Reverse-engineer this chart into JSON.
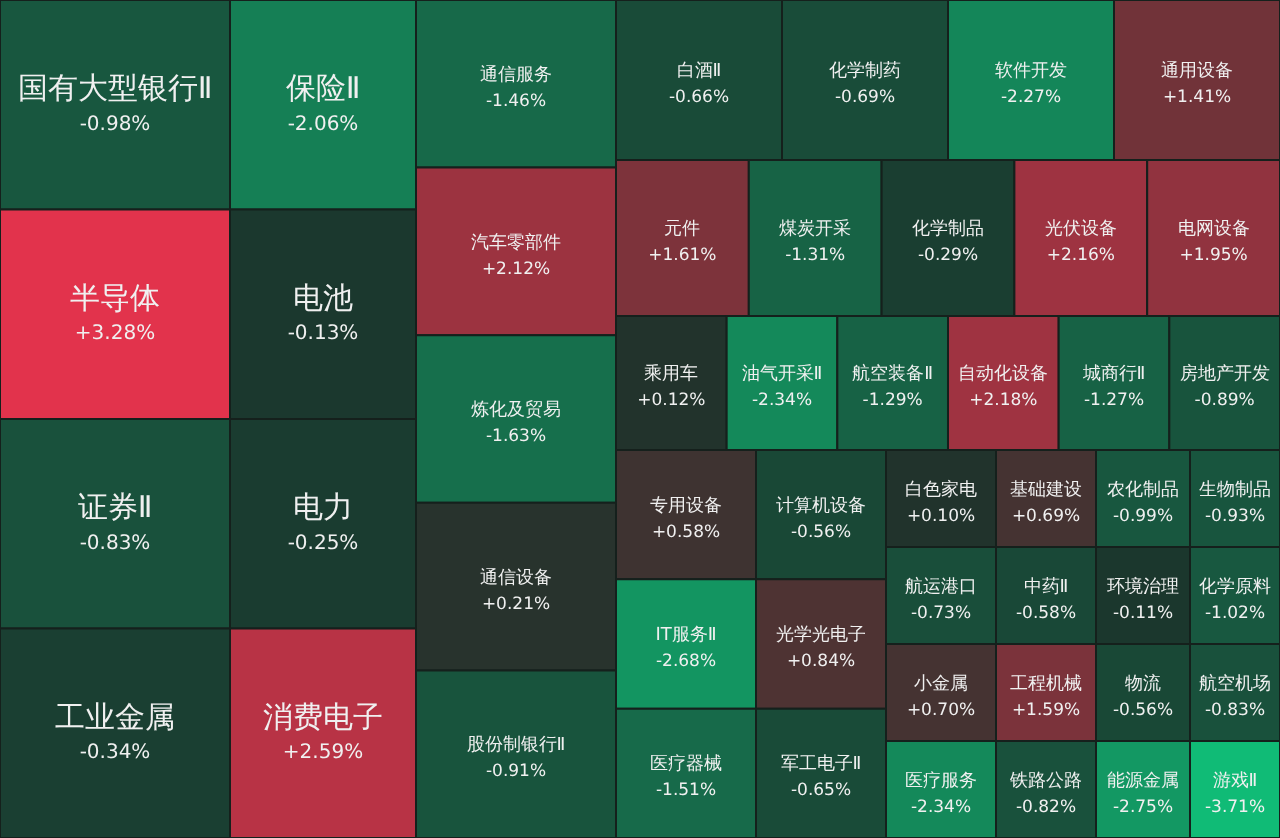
{
  "chart_data": {
    "type": "other",
    "categories": [
      "国有大型银行Ⅱ",
      "半导体",
      "证券Ⅱ",
      "工业金属",
      "保险Ⅱ",
      "电池",
      "电力",
      "消费电子",
      "通信服务",
      "汽车零部件",
      "炼化及贸易",
      "通信设备",
      "股份制银行Ⅱ",
      "白酒Ⅱ",
      "化学制药",
      "软件开发",
      "通用设备",
      "元件",
      "煤炭开采",
      "化学制品",
      "光伏设备",
      "电网设备",
      "乘用车",
      "油气开采Ⅱ",
      "航空装备Ⅱ",
      "自动化设备",
      "城商行Ⅱ",
      "房地产开发",
      "专用设备",
      "IT服务Ⅱ",
      "医疗器械",
      "计算机设备",
      "光学光电子",
      "军工电子Ⅱ",
      "白色家电",
      "航运港口",
      "小金属",
      "医疗服务",
      "基础建设",
      "中药Ⅱ",
      "工程机械",
      "铁路公路",
      "农化制品",
      "环境治理",
      "物流",
      "能源金属",
      "生物制品",
      "化学原料",
      "航空机场",
      "游戏Ⅱ"
    ],
    "values": [
      -0.98,
      3.28,
      -0.83,
      -0.34,
      -2.06,
      -0.13,
      -0.25,
      2.59,
      -1.46,
      2.12,
      -1.63,
      0.21,
      -0.91,
      -0.66,
      -0.69,
      -2.27,
      1.41,
      1.61,
      -1.31,
      -0.29,
      2.16,
      1.95,
      0.12,
      -2.34,
      -1.29,
      2.18,
      -1.27,
      -0.89,
      0.58,
      -2.68,
      -1.51,
      -0.56,
      0.84,
      -0.65,
      0.1,
      -0.73,
      0.7,
      -2.34,
      0.69,
      -0.58,
      1.59,
      -0.82,
      -0.99,
      -0.11,
      -0.56,
      -2.75,
      -0.93,
      -1.02,
      -0.83,
      -3.71
    ],
    "value_labels": [
      "-0.98%",
      "+3.28%",
      "-0.83%",
      "-0.34%",
      "-2.06%",
      "-0.13%",
      "-0.25%",
      "+2.59%",
      "-1.46%",
      "+2.12%",
      "-1.63%",
      "+0.21%",
      "-0.91%",
      "-0.66%",
      "-0.69%",
      "-2.27%",
      "+1.41%",
      "+1.61%",
      "-1.31%",
      "-0.29%",
      "+2.16%",
      "+1.95%",
      "+0.12%",
      "-2.34%",
      "-1.29%",
      "+2.18%",
      "-1.27%",
      "-0.89%",
      "+0.58%",
      "-2.68%",
      "-1.51%",
      "-0.56%",
      "+0.84%",
      "-0.65%",
      "+0.10%",
      "-0.73%",
      "+0.70%",
      "-2.34%",
      "+0.69%",
      "-0.58%",
      "+1.59%",
      "-0.82%",
      "-0.99%",
      "-0.11%",
      "-0.56%",
      "-2.75%",
      "-0.93%",
      "-1.02%",
      "-0.83%",
      "-3.71%"
    ]
  }
}
